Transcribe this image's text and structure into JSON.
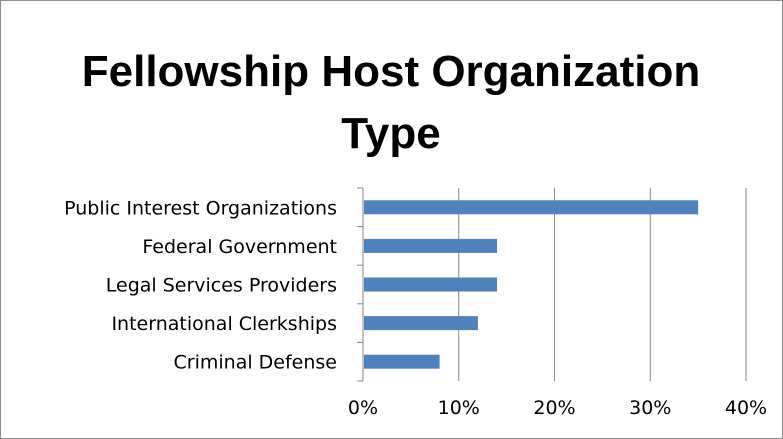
{
  "chart_data": {
    "type": "bar",
    "orientation": "horizontal",
    "title": "Fellowship Host Organization Type",
    "categories": [
      "Public Interest Organizations",
      "Federal Government",
      "Legal Services Providers",
      "International Clerkships",
      "Criminal Defense"
    ],
    "values": [
      35,
      14,
      14,
      12,
      8
    ],
    "value_unit": "%",
    "xlim": [
      0,
      40
    ],
    "x_ticks": [
      "0%",
      "10%",
      "20%",
      "30%",
      "40%"
    ],
    "xlabel": "",
    "ylabel": "",
    "grid": "vertical",
    "legend": "none",
    "bar_color": "#4f81bd"
  }
}
